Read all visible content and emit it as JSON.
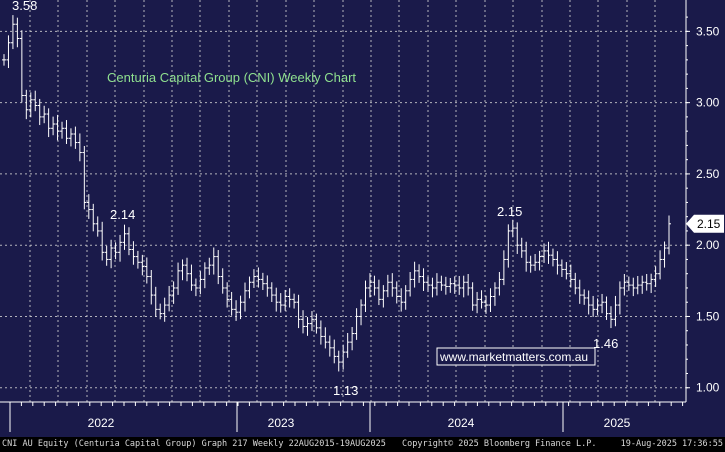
{
  "chart_data": {
    "type": "line",
    "title": "Centuria Capital Group (CNI) Weekly Chart",
    "style": "weekly OHLC bars",
    "x_ticks": [
      "2022",
      "2023",
      "2024",
      "2025"
    ],
    "y_ticks": [
      "1.00",
      "1.50",
      "2.00",
      "2.50",
      "3.00",
      "3.50"
    ],
    "ylim": [
      0.9,
      3.72
    ],
    "grid": true,
    "last_price": 2.15,
    "last_price_label": "2.15",
    "annotations": [
      {
        "label": "3.58",
        "value": 3.58
      },
      {
        "label": "2.14",
        "value": 2.14
      },
      {
        "label": "1.13",
        "value": 1.13
      },
      {
        "label": "2.15",
        "value": 2.15
      },
      {
        "label": "1.46",
        "value": 1.46
      }
    ],
    "watermark": "www.marketmatters.com.au",
    "series": [
      {
        "values": [
          3.3,
          3.42,
          3.55,
          3.45,
          3.05,
          2.95,
          3.02,
          2.98,
          2.9,
          2.92,
          2.82,
          2.85,
          2.8,
          2.82,
          2.75,
          2.78,
          2.72,
          2.65,
          2.3,
          2.25,
          2.15,
          2.1,
          1.95,
          1.9,
          1.98,
          1.95,
          2.02,
          2.08,
          1.97,
          1.92,
          1.88,
          1.85,
          1.78,
          1.65,
          1.55,
          1.52,
          1.58,
          1.65,
          1.7,
          1.82,
          1.86,
          1.8,
          1.72,
          1.7,
          1.76,
          1.84,
          1.86,
          1.92,
          1.78,
          1.7,
          1.62,
          1.55,
          1.53,
          1.6,
          1.68,
          1.74,
          1.78,
          1.76,
          1.73,
          1.7,
          1.65,
          1.6,
          1.58,
          1.64,
          1.62,
          1.6,
          1.48,
          1.43,
          1.45,
          1.48,
          1.42,
          1.36,
          1.32,
          1.28,
          1.22,
          1.18,
          1.25,
          1.32,
          1.38,
          1.5,
          1.58,
          1.7,
          1.74,
          1.7,
          1.62,
          1.68,
          1.74,
          1.7,
          1.64,
          1.6,
          1.68,
          1.76,
          1.82,
          1.78,
          1.74,
          1.72,
          1.7,
          1.74,
          1.72,
          1.71,
          1.73,
          1.72,
          1.7,
          1.74,
          1.7,
          1.58,
          1.62,
          1.6,
          1.58,
          1.64,
          1.7,
          1.76,
          1.9,
          2.1,
          2.12,
          2.0,
          1.96,
          1.88,
          1.86,
          1.88,
          1.92,
          1.96,
          1.93,
          1.9,
          1.86,
          1.83,
          1.8,
          1.76,
          1.7,
          1.65,
          1.63,
          1.58,
          1.55,
          1.58,
          1.6,
          1.52,
          1.48,
          1.58,
          1.7,
          1.74,
          1.72,
          1.7,
          1.72,
          1.74,
          1.73,
          1.76,
          1.8,
          1.9,
          1.98,
          2.15
        ]
      }
    ]
  },
  "footer": {
    "left": "CNI AU Equity (Centuria Capital Group) Graph 217  Weekly 22AUG2015-19AUG2025",
    "mid": "Copyright© 2025 Bloomberg Finance L.P.",
    "right": "19-Aug-2025 17:36:55"
  },
  "colors": {
    "background": "#1a1a4a",
    "grid": "#d0d0d0",
    "bars": "#ffffff",
    "title": "#8fe08f",
    "price_tag_bg": "#ffffff"
  }
}
